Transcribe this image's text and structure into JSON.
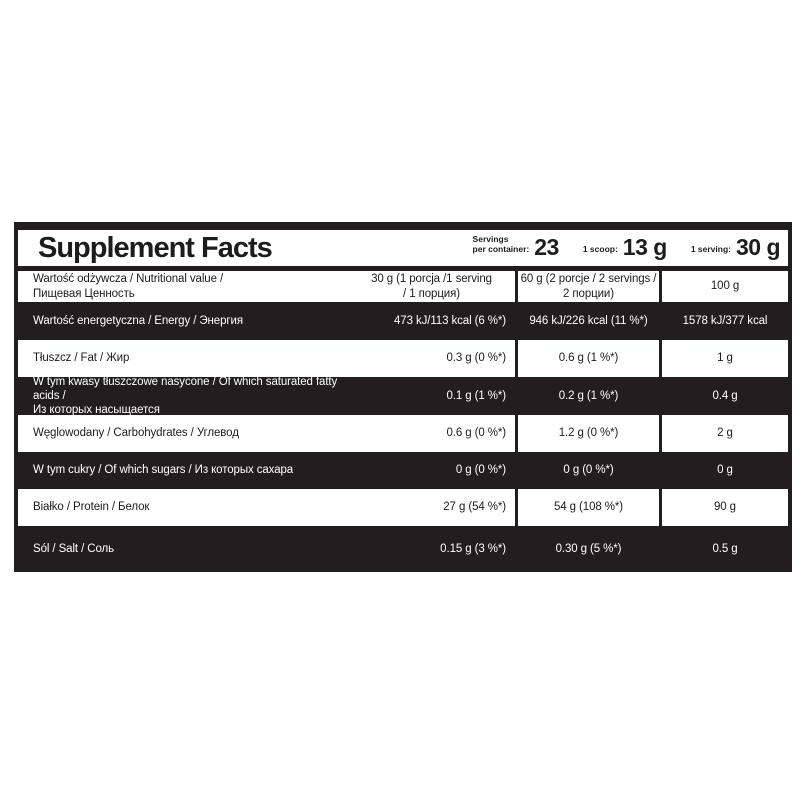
{
  "label": {
    "title": "Supplement Facts",
    "colors": {
      "dark_row_bg": "#221e1f",
      "light_row_bg": "#ffffff",
      "dark_row_text": "#ffffff",
      "light_row_text": "#1c1c1c"
    },
    "servings": [
      {
        "label_l1": "Servings",
        "label_l2": "per container:",
        "value": "23"
      },
      {
        "label_l1": "1 scoop:",
        "label_l2": "",
        "value": "13 g"
      },
      {
        "label_l1": "1 serving:",
        "label_l2": "",
        "value": "30 g"
      }
    ],
    "header_row": {
      "col1_l1": "Wartość odżywcza / Nutritional value /",
      "col1_l2": "Пищевая Ценность",
      "col2_l1": "30 g (1 porcja /1 serving",
      "col2_l2": "/ 1 порция)",
      "col3_l1": "60 g (2 porcje / 2 servings /",
      "col3_l2": "2 порции)",
      "col4": "100 g"
    },
    "rows": [
      {
        "theme": "dark",
        "label_l1": "Wartość energetyczna / Energy / Энергия",
        "label_l2": "",
        "col2": "473 kJ/113 kcal (6 %*)",
        "col3": "946 kJ/226 kcal (11 %*)",
        "col4": "1578 kJ/377 kcal"
      },
      {
        "theme": "light",
        "label_l1": "Tłuszcz / Fat / Жир",
        "label_l2": "",
        "col2": "0.3 g (0 %*)",
        "col3": "0.6 g (1 %*)",
        "col4": "1 g"
      },
      {
        "theme": "dark",
        "label_l1": "W tym kwasy tłuszczowe nasycone / Of which saturated fatty acids /",
        "label_l2": "Из которых насыщается",
        "col2": "0.1 g (1 %*)",
        "col3": "0.2 g (1 %*)",
        "col4": "0.4 g"
      },
      {
        "theme": "light",
        "label_l1": "Węglowodany / Carbohydrates / Углевод",
        "label_l2": "",
        "col2": "0.6 g (0 %*)",
        "col3": "1.2 g (0 %*)",
        "col4": "2 g"
      },
      {
        "theme": "dark",
        "label_l1": "W tym cukry / Of which sugars / Из которых сахара",
        "label_l2": "",
        "col2": "0 g (0 %*)",
        "col3": "0 g (0 %*)",
        "col4": "0 g"
      },
      {
        "theme": "light",
        "label_l1": "Białko / Protein / Белок",
        "label_l2": "",
        "col2": "27 g (54 %*)",
        "col3": "54 g (108 %*)",
        "col4": "90 g"
      },
      {
        "theme": "dark",
        "label_l1": "Sól / Salt / Соль",
        "label_l2": "",
        "col2": "0.15 g (3 %*)",
        "col3": "0.30 g (5 %*)",
        "col4": "0.5 g"
      }
    ]
  }
}
